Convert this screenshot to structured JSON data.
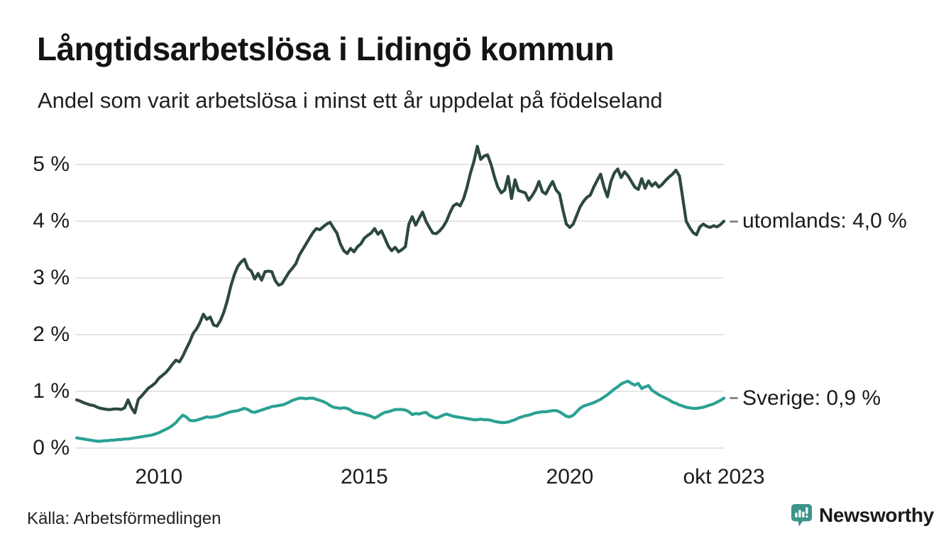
{
  "header": {
    "title": "Långtidsarbetslösa i Lidingö kommun",
    "subtitle": "Andel som varit arbetslösa i minst ett år uppdelat på födelseland"
  },
  "footer": {
    "source": "Källa: Arbetsförmedlingen"
  },
  "logo": {
    "text": "Newsworthy",
    "color": "#3c948c"
  },
  "colors": {
    "utomlands_line": "#2c4841",
    "sverige_line": "#2aa193",
    "gridline": "#e5e5e5",
    "text": "#1c1c1c"
  },
  "chart_data": {
    "type": "line",
    "title": "Långtidsarbetslösa i Lidingö kommun",
    "subtitle": "Andel som varit arbetslösa i minst ett år uppdelat på födelseland",
    "x_start_year": 2008,
    "x_interval": "monthly",
    "x_end_label": "okt 2023",
    "ylim": [
      0,
      5.5
    ],
    "grid": "horizontal",
    "legend_position": "line-end-labels-right",
    "xticks": [
      {
        "year": 2010,
        "label": "2010"
      },
      {
        "year": 2015,
        "label": "2015"
      },
      {
        "year": 2020,
        "label": "2020"
      },
      {
        "year": 2023.75,
        "label": "okt 2023"
      }
    ],
    "yticks": [
      {
        "value": 5,
        "label": "5 %"
      },
      {
        "value": 4,
        "label": "4 %"
      },
      {
        "value": 3,
        "label": "3 %"
      },
      {
        "value": 2,
        "label": "2 %"
      },
      {
        "value": 1,
        "label": "1 %"
      },
      {
        "value": 0,
        "label": "0 %"
      }
    ],
    "series": [
      {
        "name": "utomlands",
        "color": "#2c4841",
        "end_label": "utomlands: 4,0 %",
        "end_value": "4,0 %",
        "values": [
          0.85,
          0.83,
          0.8,
          0.78,
          0.76,
          0.75,
          0.72,
          0.7,
          0.69,
          0.68,
          0.68,
          0.69,
          0.69,
          0.68,
          0.71,
          0.85,
          0.71,
          0.62,
          0.86,
          0.92,
          0.99,
          1.06,
          1.1,
          1.15,
          1.23,
          1.28,
          1.33,
          1.4,
          1.48,
          1.55,
          1.52,
          1.62,
          1.75,
          1.87,
          2.02,
          2.1,
          2.21,
          2.36,
          2.27,
          2.31,
          2.17,
          2.15,
          2.25,
          2.4,
          2.6,
          2.85,
          3.05,
          3.2,
          3.28,
          3.33,
          3.17,
          3.12,
          2.98,
          3.08,
          2.96,
          3.11,
          3.12,
          3.11,
          2.95,
          2.87,
          2.9,
          3.0,
          3.1,
          3.17,
          3.25,
          3.4,
          3.5,
          3.6,
          3.7,
          3.8,
          3.87,
          3.85,
          3.9,
          3.95,
          3.98,
          3.88,
          3.79,
          3.6,
          3.48,
          3.43,
          3.52,
          3.46,
          3.55,
          3.6,
          3.7,
          3.75,
          3.79,
          3.87,
          3.77,
          3.83,
          3.7,
          3.56,
          3.48,
          3.54,
          3.46,
          3.5,
          3.55,
          3.95,
          4.08,
          3.93,
          4.05,
          4.16,
          4.0,
          3.89,
          3.79,
          3.78,
          3.83,
          3.9,
          4.0,
          4.15,
          4.27,
          4.31,
          4.27,
          4.4,
          4.6,
          4.85,
          5.05,
          5.32,
          5.09,
          5.15,
          5.17,
          5.0,
          4.78,
          4.6,
          4.5,
          4.55,
          4.79,
          4.4,
          4.73,
          4.54,
          4.52,
          4.5,
          4.37,
          4.45,
          4.55,
          4.7,
          4.52,
          4.48,
          4.6,
          4.7,
          4.55,
          4.48,
          4.2,
          3.95,
          3.89,
          3.95,
          4.1,
          4.25,
          4.35,
          4.42,
          4.46,
          4.6,
          4.72,
          4.83,
          4.6,
          4.43,
          4.7,
          4.85,
          4.92,
          4.77,
          4.87,
          4.8,
          4.7,
          4.6,
          4.56,
          4.75,
          4.58,
          4.71,
          4.62,
          4.68,
          4.6,
          4.65,
          4.72,
          4.78,
          4.83,
          4.9,
          4.8,
          4.4,
          4.0,
          3.89,
          3.8,
          3.76,
          3.9,
          3.95,
          3.91,
          3.89,
          3.92,
          3.9,
          3.94,
          4.0
        ]
      },
      {
        "name": "Sverige",
        "color": "#2aa193",
        "end_label": "Sverige: 0,9 %",
        "end_value": "0,9 %",
        "values": [
          0.18,
          0.17,
          0.16,
          0.15,
          0.14,
          0.13,
          0.12,
          0.12,
          0.13,
          0.13,
          0.14,
          0.14,
          0.15,
          0.15,
          0.16,
          0.16,
          0.17,
          0.18,
          0.19,
          0.2,
          0.21,
          0.22,
          0.23,
          0.25,
          0.27,
          0.3,
          0.33,
          0.36,
          0.4,
          0.45,
          0.52,
          0.58,
          0.55,
          0.49,
          0.48,
          0.49,
          0.51,
          0.53,
          0.55,
          0.54,
          0.55,
          0.56,
          0.58,
          0.6,
          0.62,
          0.64,
          0.65,
          0.66,
          0.68,
          0.7,
          0.68,
          0.64,
          0.63,
          0.65,
          0.67,
          0.69,
          0.71,
          0.73,
          0.74,
          0.75,
          0.76,
          0.78,
          0.81,
          0.84,
          0.86,
          0.88,
          0.88,
          0.87,
          0.88,
          0.88,
          0.86,
          0.84,
          0.82,
          0.79,
          0.75,
          0.72,
          0.71,
          0.7,
          0.71,
          0.7,
          0.67,
          0.63,
          0.62,
          0.61,
          0.6,
          0.58,
          0.56,
          0.53,
          0.56,
          0.6,
          0.63,
          0.64,
          0.66,
          0.68,
          0.68,
          0.68,
          0.67,
          0.64,
          0.59,
          0.61,
          0.6,
          0.62,
          0.63,
          0.58,
          0.55,
          0.53,
          0.55,
          0.58,
          0.6,
          0.58,
          0.56,
          0.55,
          0.54,
          0.53,
          0.52,
          0.51,
          0.5,
          0.5,
          0.51,
          0.5,
          0.5,
          0.49,
          0.47,
          0.46,
          0.45,
          0.45,
          0.46,
          0.48,
          0.5,
          0.53,
          0.55,
          0.57,
          0.58,
          0.6,
          0.62,
          0.63,
          0.64,
          0.64,
          0.65,
          0.66,
          0.66,
          0.64,
          0.6,
          0.56,
          0.55,
          0.58,
          0.64,
          0.7,
          0.74,
          0.76,
          0.78,
          0.8,
          0.83,
          0.86,
          0.9,
          0.94,
          0.99,
          1.04,
          1.08,
          1.13,
          1.16,
          1.18,
          1.14,
          1.11,
          1.14,
          1.05,
          1.08,
          1.1,
          1.02,
          0.98,
          0.94,
          0.91,
          0.88,
          0.85,
          0.81,
          0.79,
          0.76,
          0.74,
          0.72,
          0.71,
          0.7,
          0.7,
          0.71,
          0.72,
          0.74,
          0.76,
          0.78,
          0.81,
          0.84,
          0.88
        ]
      }
    ]
  }
}
